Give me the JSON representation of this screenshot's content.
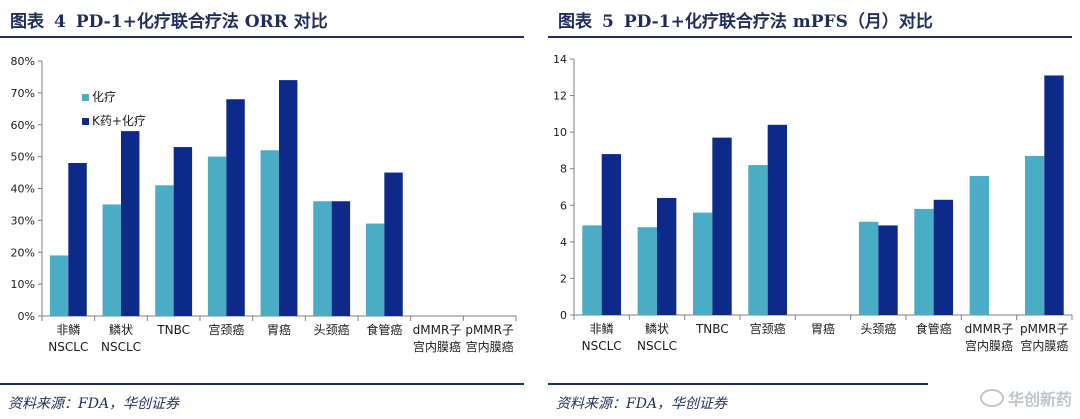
{
  "left": {
    "figure_label": "图表",
    "figure_number": "4",
    "title": "PD-1+化疗联合疗法 ORR 对比",
    "source": "资料来源：FDA，华创证券"
  },
  "right": {
    "figure_label": "图表",
    "figure_number": "5",
    "title": "PD-1+化疗联合疗法 mPFS（月）对比",
    "source": "资料来源：FDA，华创证券"
  },
  "watermark": "华创新药",
  "colors": {
    "chemo": "#4bacc6",
    "combo": "#0d2a8a",
    "title": "#1f2d5a"
  },
  "chart_data": [
    {
      "type": "bar",
      "title": "PD-1+化疗联合疗法 ORR 对比",
      "categories": [
        [
          "非鳞",
          "NSCLC"
        ],
        [
          "鳞状",
          "NSCLC"
        ],
        [
          "TNBC"
        ],
        [
          "宫颈癌"
        ],
        [
          "胃癌"
        ],
        [
          "头颈癌"
        ],
        [
          "食管癌"
        ],
        [
          "dMMR子",
          "宫内膜癌"
        ],
        [
          "pMMR子",
          "宫内膜癌"
        ]
      ],
      "series": [
        {
          "name": "化疗",
          "values": [
            19,
            35,
            41,
            50,
            52,
            36,
            29,
            null,
            null
          ]
        },
        {
          "name": "K药+化疗",
          "values": [
            48,
            58,
            53,
            68,
            74,
            36,
            45,
            null,
            null
          ]
        }
      ],
      "yticks": [
        "0%",
        "10%",
        "20%",
        "30%",
        "40%",
        "50%",
        "60%",
        "70%",
        "80%"
      ],
      "ylim": [
        0,
        80
      ],
      "unit": "%",
      "legend": "top-left",
      "grid": false
    },
    {
      "type": "bar",
      "title": "PD-1+化疗联合疗法 mPFS（月）对比",
      "categories": [
        [
          "非鳞",
          "NSCLC"
        ],
        [
          "鳞状",
          "NSCLC"
        ],
        [
          "TNBC"
        ],
        [
          "宫颈癌"
        ],
        [
          "胃癌"
        ],
        [
          "头颈癌"
        ],
        [
          "食管癌"
        ],
        [
          "dMMR子",
          "宫内膜癌"
        ],
        [
          "pMMR子",
          "宫内膜癌"
        ]
      ],
      "series": [
        {
          "values": [
            4.9,
            4.8,
            5.6,
            8.2,
            null,
            5.1,
            5.8,
            7.6,
            8.7
          ]
        },
        {
          "values": [
            8.8,
            6.4,
            9.7,
            10.4,
            null,
            4.9,
            6.3,
            null,
            13.1
          ]
        }
      ],
      "yticks": [
        "0",
        "2",
        "4",
        "6",
        "8",
        "10",
        "12",
        "14"
      ],
      "ylim": [
        0,
        14
      ],
      "legend": "none",
      "grid": false
    }
  ]
}
